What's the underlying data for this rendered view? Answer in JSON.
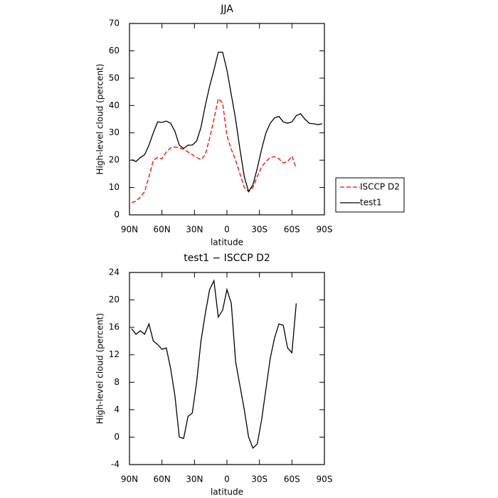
{
  "chart_data": [
    {
      "type": "line",
      "title": "JJA",
      "xlabel": "latitude",
      "ylabel": "High-level cloud (percent)",
      "x": [
        88,
        84,
        80,
        76,
        72,
        68,
        64,
        60,
        56,
        52,
        48,
        44,
        40,
        36,
        32,
        28,
        24,
        20,
        16,
        12,
        8,
        4,
        0,
        -4,
        -8,
        -12,
        -16,
        -20,
        -24,
        -28,
        -32,
        -36,
        -40,
        -44,
        -48,
        -52,
        -56,
        -60,
        -64,
        -68,
        -72,
        -76,
        -80,
        -84,
        -88
      ],
      "series": [
        {
          "name": "ISCCP D2",
          "color": "#ff0000",
          "dashed": true,
          "values": [
            4.5,
            5,
            6.5,
            8.5,
            14,
            20,
            21,
            20.5,
            23,
            24.5,
            24.8,
            24.5,
            24,
            23,
            22,
            21,
            20.2,
            22,
            28,
            35,
            42.5,
            41,
            29,
            24,
            20,
            15,
            10,
            8.5,
            10,
            14,
            17.5,
            19.5,
            21,
            21.3,
            20.5,
            19,
            19.5,
            21.5,
            17,
            null,
            null,
            null,
            null,
            null,
            null
          ]
        },
        {
          "name": "test1",
          "color": "#000000",
          "dashed": false,
          "values": [
            20.2,
            19.5,
            21,
            22,
            25.5,
            30,
            34,
            33.8,
            34.3,
            33.5,
            30.5,
            25.5,
            24.3,
            25.5,
            25.5,
            27,
            32,
            40,
            47,
            53,
            59.5,
            59.5,
            53,
            44,
            35,
            24,
            14,
            8.5,
            11,
            17,
            24,
            30,
            33.5,
            35.5,
            36,
            34,
            33.5,
            34,
            36.3,
            37,
            35,
            33.5,
            33.3,
            33,
            33.3
          ]
        }
      ],
      "xlim": [
        90,
        -90
      ],
      "xticks": [
        {
          "value": 90,
          "label": "90N"
        },
        {
          "value": 60,
          "label": "60N"
        },
        {
          "value": 30,
          "label": "30N"
        },
        0,
        {
          "value": -30,
          "label": "30S"
        },
        {
          "value": -60,
          "label": "60S"
        },
        {
          "value": -90,
          "label": "90S"
        }
      ],
      "ylim": [
        0,
        70
      ],
      "yticks": [
        0,
        10,
        20,
        30,
        40,
        50,
        60,
        70
      ],
      "legend": "outside-right"
    },
    {
      "type": "line",
      "title": "test1 − ISCCP D2",
      "xlabel": "latitude",
      "ylabel": "High-level cloud (percent)",
      "x": [
        88,
        84,
        80,
        76,
        72,
        68,
        64,
        60,
        56,
        52,
        48,
        44,
        40,
        36,
        32,
        28,
        24,
        20,
        16,
        12,
        8,
        4,
        0,
        -4,
        -8,
        -12,
        -16,
        -20,
        -24,
        -28,
        -32,
        -36,
        -40,
        -44,
        -48,
        -52,
        -56,
        -60,
        -64,
        -68,
        -72,
        -76,
        -80,
        -84,
        -88
      ],
      "series": [
        {
          "color": "#000000",
          "dashed": false,
          "values": [
            15.8,
            15,
            15.5,
            15,
            16.5,
            14,
            13.5,
            12.8,
            13,
            10,
            6,
            0,
            -0.2,
            3,
            3.5,
            8,
            14,
            18,
            21.5,
            22.8,
            17.5,
            18.5,
            21.5,
            19.5,
            11,
            7.5,
            4,
            0,
            -1.6,
            -1,
            2.5,
            7,
            11.5,
            14.5,
            16.5,
            16.3,
            13,
            12.3,
            19.5,
            null,
            null,
            null,
            null,
            null,
            null
          ]
        }
      ],
      "xlim": [
        90,
        -90
      ],
      "xticks": [
        {
          "value": 90,
          "label": "90N"
        },
        {
          "value": 60,
          "label": "60N"
        },
        {
          "value": 30,
          "label": "30N"
        },
        0,
        {
          "value": -30,
          "label": "30S"
        },
        {
          "value": -60,
          "label": "60S"
        },
        {
          "value": -90,
          "label": "90S"
        }
      ],
      "ylim": [
        -4,
        24
      ],
      "yticks": [
        -4,
        0,
        4,
        8,
        12,
        16,
        20,
        24
      ]
    }
  ]
}
